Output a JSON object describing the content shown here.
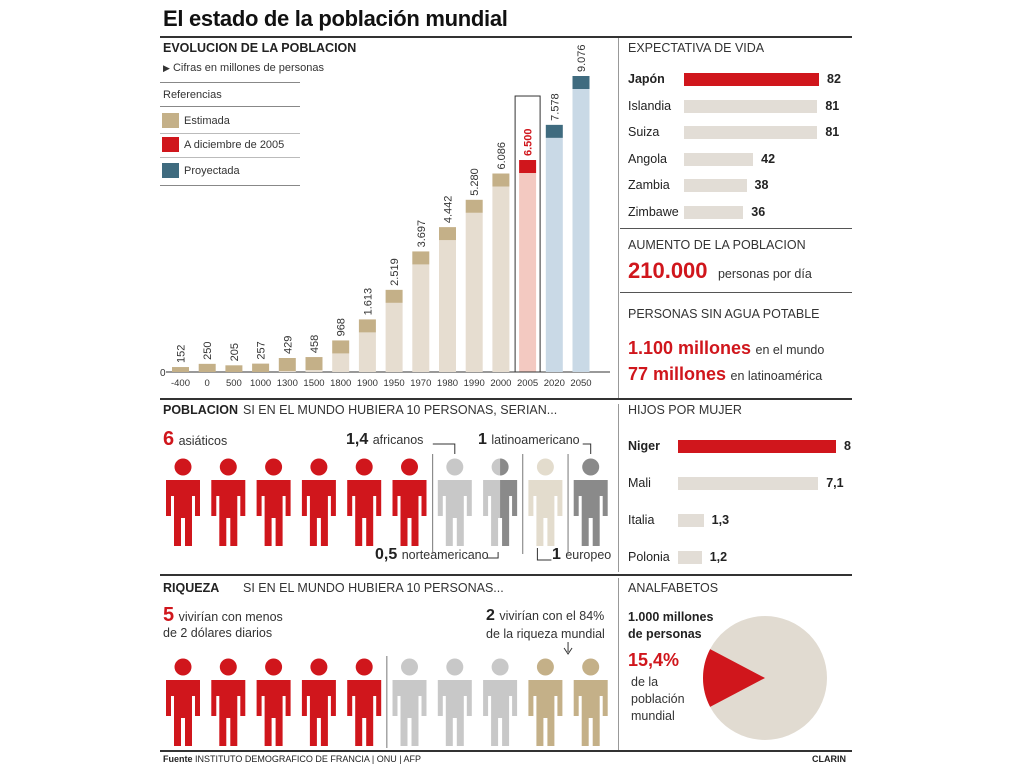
{
  "title": "El estado de la población mundial",
  "colors": {
    "estimated": "#c4b088",
    "current": "#d0161c",
    "projected": "#3f6b7f",
    "estimated_light": "#e6ddd0",
    "current_light": "#f3c9c1",
    "projected_light": "#c9d9e6",
    "grey_bar": "#e2ddd6",
    "grey_person": "#c8c8c8",
    "dark_grey_person": "#8a8a8a",
    "cream_person": "#e3dccd"
  },
  "evolution": {
    "heading": "EVOLUCION DE LA POBLACION",
    "subtitle": "Cifras en millones de personas",
    "legend_title": "Referencias",
    "legend": [
      {
        "label": "Estimada",
        "color": "#c4b088"
      },
      {
        "label": "A diciembre de 2005",
        "color": "#d0161c"
      },
      {
        "label": "Proyectada",
        "color": "#3f6b7f"
      }
    ],
    "zero_label": "0"
  },
  "chart_data": {
    "type": "bar",
    "categories": [
      "-400",
      "0",
      "500",
      "1000",
      "1300",
      "1500",
      "1800",
      "1900",
      "1950",
      "1970",
      "1980",
      "1990",
      "2000",
      "2005",
      "2020",
      "2050"
    ],
    "values": [
      152,
      250,
      205,
      257,
      429,
      458,
      968,
      1613,
      2519,
      3697,
      4442,
      5280,
      6086,
      6500,
      7578,
      9076
    ],
    "value_labels": [
      "152",
      "250",
      "205",
      "257",
      "429",
      "458",
      "968",
      "1.613",
      "2.519",
      "3.697",
      "4.442",
      "5.280",
      "6.086",
      "6.500",
      "7.578",
      "9.076"
    ],
    "status": [
      "estimada",
      "estimada",
      "estimada",
      "estimada",
      "estimada",
      "estimada",
      "estimada",
      "estimada",
      "estimada",
      "estimada",
      "estimada",
      "estimada",
      "estimada",
      "a diciembre de 2005",
      "proyectada",
      "proyectada"
    ],
    "ylim": [
      0,
      9076
    ],
    "xlabel": "",
    "ylabel": ""
  },
  "life": {
    "heading": "EXPECTATIVA DE VIDA",
    "max": 82,
    "items": [
      {
        "label": "Japón",
        "value": 82,
        "text": "82",
        "highlight": true
      },
      {
        "label": "Islandia",
        "value": 81,
        "text": "81",
        "highlight": false
      },
      {
        "label": "Suiza",
        "value": 81,
        "text": "81",
        "highlight": false
      },
      {
        "label": "Angola",
        "value": 42,
        "text": "42",
        "highlight": false
      },
      {
        "label": "Zambia",
        "value": 38,
        "text": "38",
        "highlight": false
      },
      {
        "label": "Zimbawe",
        "value": 36,
        "text": "36",
        "highlight": false
      }
    ]
  },
  "growth": {
    "heading": "AUMENTO DE LA POBLACION",
    "number": "210.000",
    "text": "personas por día"
  },
  "water": {
    "heading": "PERSONAS SIN AGUA POTABLE",
    "line1_number": "1.100 millones",
    "line1_text": "en el mundo",
    "line2_number": "77 millones",
    "line2_text": "en latinoamérica"
  },
  "population": {
    "heading": "POBLACION",
    "subheading": "SI EN EL MUNDO HUBIERA 10 PERSONAS, SERIAN...",
    "asia_number": "6",
    "asia_text": "asiáticos",
    "africa_number": "1,4",
    "africa_text": "africanos",
    "latam_number": "1",
    "latam_text": "latinoamericano",
    "north_number": "0,5",
    "north_text": "norteamericano",
    "europe_number": "1",
    "europe_text": "europeo"
  },
  "children": {
    "heading": "HIJOS POR MUJER",
    "max": 8,
    "items": [
      {
        "label": "Niger",
        "value": 8,
        "text": "8",
        "highlight": true
      },
      {
        "label": "Mali",
        "value": 7.1,
        "text": "7,1",
        "highlight": false
      },
      {
        "label": "Italia",
        "value": 1.3,
        "text": "1,3",
        "highlight": false
      },
      {
        "label": "Polonia",
        "value": 1.2,
        "text": "1,2",
        "highlight": false
      }
    ]
  },
  "wealth": {
    "heading": "RIQUEZA",
    "subheading": "SI EN EL MUNDO HUBIERA 10 PERSONAS...",
    "poor_number": "5",
    "poor_text1": "vivirían con menos",
    "poor_text2": "de 2 dólares diarios",
    "rich_number": "2",
    "rich_text1": "vivirían con el 84%",
    "rich_text2": "de la riqueza mundial"
  },
  "illiteracy": {
    "heading": "ANALFABETOS",
    "line1": "1.000 millones",
    "line2": "de personas",
    "percent": "15,4%",
    "percent_value": 15.4,
    "desc1": "de la",
    "desc2": "población",
    "desc3": "mundial"
  },
  "footer": {
    "source_label": "Fuente",
    "source": "INSTITUTO DEMOGRAFICO DE FRANCIA | ONU | AFP",
    "credit": "CLARIN"
  }
}
